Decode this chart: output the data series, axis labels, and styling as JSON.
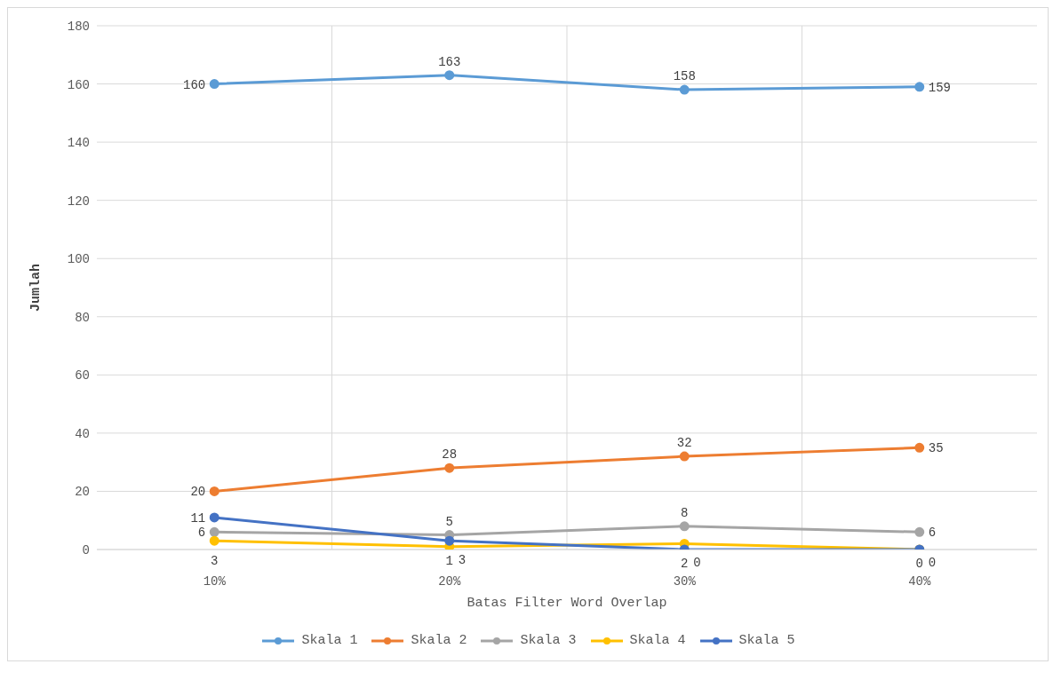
{
  "chart_data": {
    "type": "line",
    "xlabel": "Batas Filter Word Overlap",
    "ylabel": "Jumlah",
    "categories": [
      "10%",
      "20%",
      "30%",
      "40%"
    ],
    "series": [
      {
        "name": "Skala 1",
        "color": "#5b9bd5",
        "values": [
          160,
          163,
          158,
          159
        ]
      },
      {
        "name": "Skala 2",
        "color": "#ed7d31",
        "values": [
          20,
          28,
          32,
          35
        ]
      },
      {
        "name": "Skala 3",
        "color": "#a5a5a5",
        "values": [
          6,
          5,
          8,
          6
        ]
      },
      {
        "name": "Skala 4",
        "color": "#ffc000",
        "values": [
          3,
          1,
          2,
          0
        ]
      },
      {
        "name": "Skala 5",
        "color": "#4472c4",
        "values": [
          11,
          3,
          0,
          0
        ]
      }
    ],
    "ylim": [
      0,
      180
    ],
    "yticks": [
      0,
      20,
      40,
      60,
      80,
      100,
      120,
      140,
      160,
      180
    ],
    "grid": true,
    "legend": "bottom",
    "marker": "circle",
    "line_style": "solid",
    "data_labels": true
  }
}
